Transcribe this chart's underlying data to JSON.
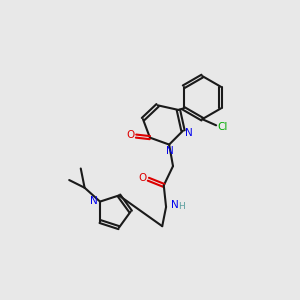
{
  "background_color": "#e8e8e8",
  "bond_color": "#1a1a1a",
  "atom_colors": {
    "N": "#0000ee",
    "O": "#dd0000",
    "Cl": "#00aa00",
    "H": "#5a9e9e",
    "C": "#1a1a1a"
  },
  "lw": 1.5,
  "font_size": 7.5,
  "font_size_small": 6.5
}
